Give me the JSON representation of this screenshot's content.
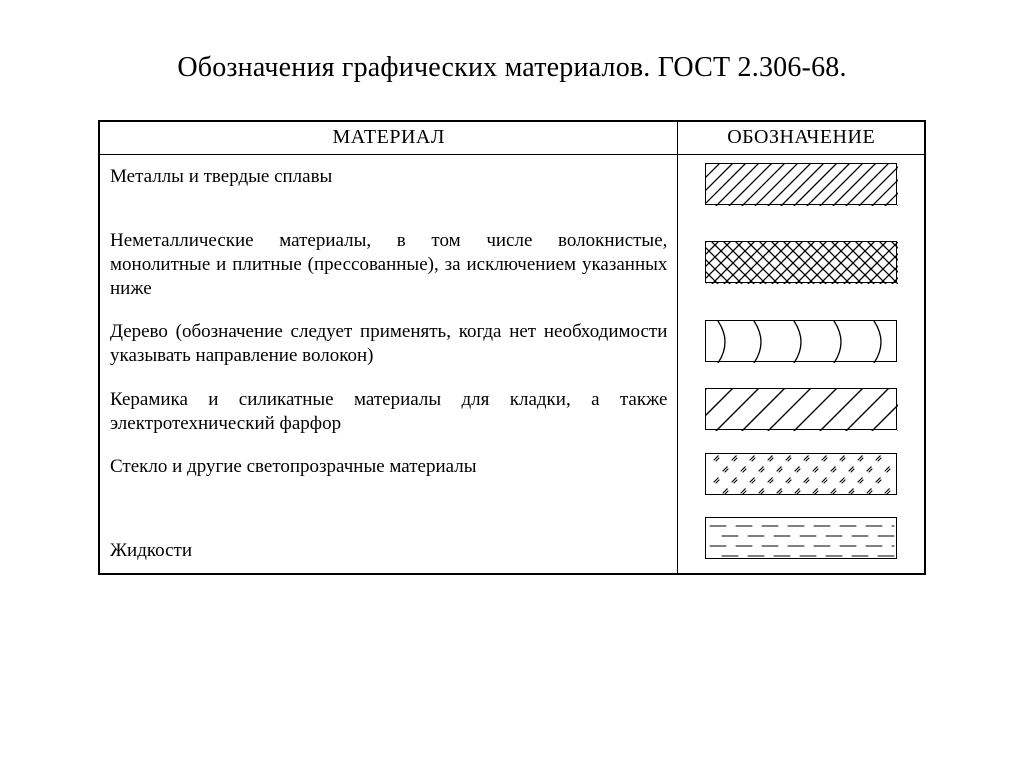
{
  "title": "Обозначения графических материалов. ГОСТ 2.306-68.",
  "columns": {
    "material": "МАТЕРИАЛ",
    "symbol": "ОБОЗНАЧЕНИЕ"
  },
  "swatch": {
    "width": 192,
    "height": 42,
    "stroke": "#000000",
    "stroke_width": 1.3,
    "background": "#ffffff"
  },
  "rows": [
    {
      "label": "Металлы и твердые сплавы",
      "pattern": "diagonal45",
      "spacing": 13,
      "stroke_width": 1.3
    },
    {
      "label": "Неметаллические материалы, в том числе волокнистые, монолитные и плитные (прессованные), за исключением указанных ниже",
      "pattern": "crosshatch45",
      "spacing": 12,
      "stroke_width": 1.3
    },
    {
      "label": "Дерево (обозначение следует применять, когда нет необ­ходимости указывать направление волокон)",
      "pattern": "wood-arcs",
      "stroke_width": 1.3
    },
    {
      "label": "Керамика и силикатные материалы для кладки, а также электротехнический фарфор",
      "pattern": "diagonal45",
      "spacing": 26,
      "stroke_width": 1.4
    },
    {
      "label": "Стекло и другие светопрозрачные материалы",
      "pattern": "glass-ticks",
      "row_spacing": 11,
      "col_spacing": 18,
      "tick_len": 6,
      "stroke_width": 1.1
    },
    {
      "label": "Жидкости",
      "pattern": "dashed-horizontal",
      "row_spacing": 10,
      "dash": "16 10",
      "stroke_width": 1.0
    }
  ],
  "style": {
    "title_fontsize": 28,
    "body_fontsize": 19,
    "header_fontsize": 20,
    "text_color": "#000000",
    "background_color": "#ffffff",
    "outer_border_width": 2.5,
    "inner_border_width": 1.5,
    "font_family": "Times New Roman"
  }
}
